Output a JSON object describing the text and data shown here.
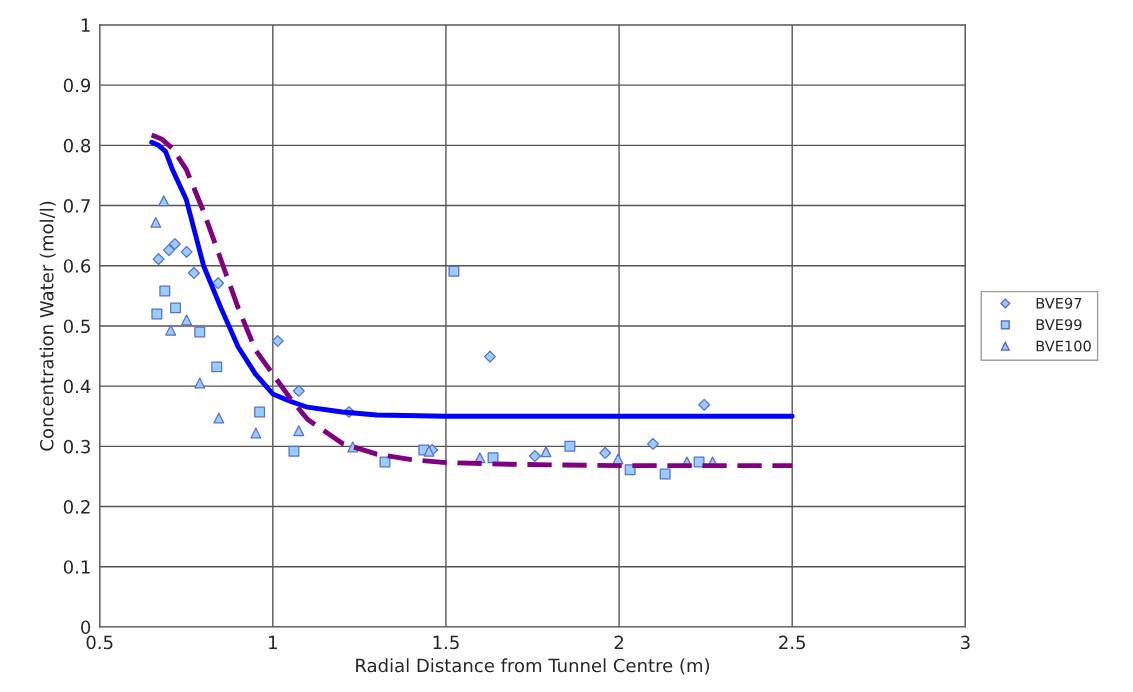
{
  "chart_data": {
    "type": "scatter",
    "xlabel": "Radial Distance from Tunnel Centre (m)",
    "ylabel": "Concentration Water (mol/l)",
    "xlim": [
      0.5,
      3
    ],
    "xticks": [
      0.5,
      1,
      1.5,
      2,
      2.5,
      3
    ],
    "ylim": [
      0,
      1
    ],
    "yticks": [
      0,
      0.1,
      0.2,
      0.3,
      0.4,
      0.5,
      0.6,
      0.7,
      0.8,
      0.9,
      1
    ],
    "grid": true,
    "legend": "right",
    "series": [
      {
        "name": "BVE97",
        "marker": "diamond",
        "color": "#99ccff",
        "x": [
          0.67,
          0.7,
          0.717,
          0.751,
          0.772,
          0.842,
          1.014,
          1.075,
          1.22,
          1.46,
          1.627,
          1.757,
          1.96,
          2.098,
          2.246
        ],
        "values": [
          0.611,
          0.626,
          0.636,
          0.623,
          0.588,
          0.571,
          0.475,
          0.392,
          0.357,
          0.294,
          0.449,
          0.284,
          0.289,
          0.304,
          0.369
        ]
      },
      {
        "name": "BVE99",
        "marker": "square",
        "color": "#99ccff",
        "x": [
          0.665,
          0.688,
          0.719,
          0.789,
          0.838,
          0.962,
          1.061,
          1.324,
          1.436,
          1.523,
          1.636,
          1.858,
          2.032,
          2.133,
          2.231
        ],
        "values": [
          0.52,
          0.558,
          0.53,
          0.49,
          0.432,
          0.357,
          0.292,
          0.274,
          0.294,
          0.591,
          0.281,
          0.3,
          0.261,
          0.254,
          0.274
        ]
      },
      {
        "name": "BVE100",
        "marker": "triangle",
        "color": "#99ccff",
        "x": [
          0.662,
          0.685,
          0.705,
          0.751,
          0.789,
          0.844,
          0.951,
          1.075,
          1.231,
          1.451,
          1.598,
          1.789,
          1.997,
          2.196,
          2.27
        ],
        "values": [
          0.672,
          0.708,
          0.493,
          0.51,
          0.405,
          0.347,
          0.322,
          0.326,
          0.299,
          0.292,
          0.281,
          0.291,
          0.279,
          0.274,
          0.274
        ]
      },
      {
        "type": "line",
        "line_style": "solid",
        "color": "#0000ff",
        "x": [
          0.65,
          0.67,
          0.69,
          0.71,
          0.75,
          0.8,
          0.85,
          0.9,
          0.95,
          1.0,
          1.05,
          1.1,
          1.2,
          1.3,
          1.5,
          2.0,
          2.5
        ],
        "values": [
          0.805,
          0.8,
          0.79,
          0.76,
          0.71,
          0.6,
          0.53,
          0.465,
          0.42,
          0.387,
          0.375,
          0.365,
          0.357,
          0.352,
          0.35,
          0.35,
          0.35
        ]
      },
      {
        "type": "line",
        "line_style": "dashed",
        "color": "#800080",
        "x": [
          0.65,
          0.68,
          0.71,
          0.75,
          0.8,
          0.85,
          0.9,
          0.95,
          1.0,
          1.05,
          1.1,
          1.2,
          1.3,
          1.4,
          1.5,
          1.7,
          2.0,
          2.5
        ],
        "values": [
          0.817,
          0.81,
          0.795,
          0.76,
          0.69,
          0.61,
          0.53,
          0.46,
          0.42,
          0.38,
          0.345,
          0.305,
          0.287,
          0.278,
          0.273,
          0.27,
          0.268,
          0.268
        ]
      }
    ]
  }
}
